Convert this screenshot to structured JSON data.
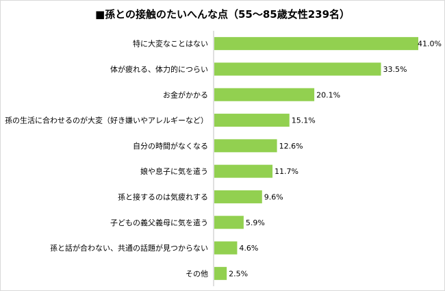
{
  "chart_data": {
    "type": "bar",
    "orientation": "horizontal",
    "title": "■孫との接触のたいへんな点（55～85歳女性239名）",
    "categories": [
      "特に大変なことはない",
      "体が疲れる、体力的につらい",
      "お金がかかる",
      "孫の生活に合わせるのが大変（好き嫌いやアレルギーなど）",
      "自分の時間がなくなる",
      "娘や息子に気を遣う",
      "孫と接するのは気疲れする",
      "子どもの義父義母に気を遣う",
      "孫と話が合わない、共通の話題が見つからない",
      "その他"
    ],
    "values": [
      41.0,
      33.5,
      20.1,
      15.1,
      12.6,
      11.7,
      9.6,
      5.9,
      4.6,
      2.5
    ],
    "value_labels": [
      "41.0%",
      "33.5%",
      "20.1%",
      "15.1%",
      "12.6%",
      "11.7%",
      "9.6%",
      "5.9%",
      "4.6%",
      "2.5%"
    ],
    "xlim": [
      0,
      41.0
    ],
    "bar_color": "#92d050",
    "axis_color": "#bfbfbf",
    "grid": false,
    "legend": "none"
  }
}
